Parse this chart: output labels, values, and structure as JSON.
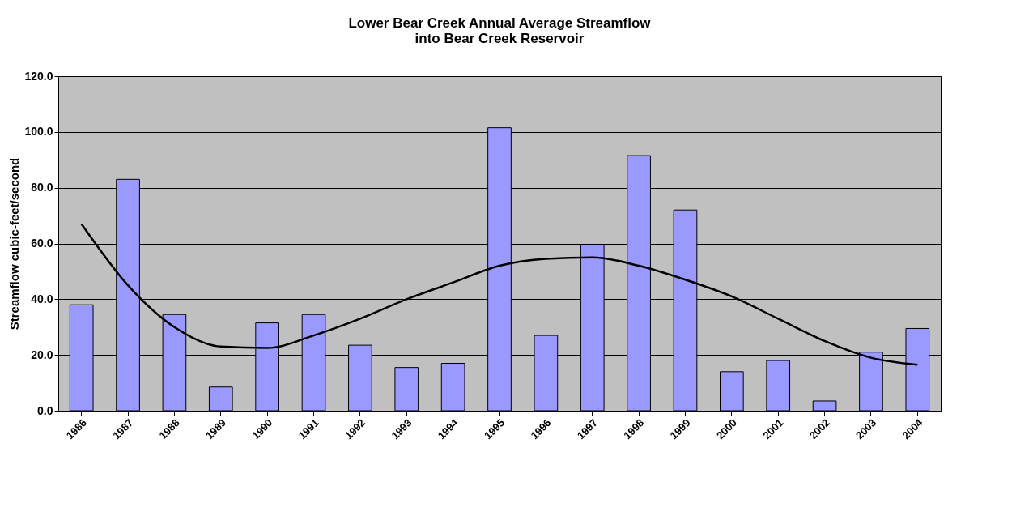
{
  "chart_data": {
    "type": "bar",
    "title": [
      "Lower Bear Creek Annual Average Streamflow",
      "into Bear Creek Reservoir"
    ],
    "ylabel": "Streamflow cubic-feet/second",
    "categories": [
      "1986",
      "1987",
      "1988",
      "1989",
      "1990",
      "1991",
      "1992",
      "1993",
      "1994",
      "1995",
      "1996",
      "1997",
      "1998",
      "1999",
      "2000",
      "2001",
      "2002",
      "2003",
      "2004"
    ],
    "series": [
      {
        "color": "#9999ff",
        "values": [
          38,
          83,
          34.5,
          8.5,
          31.5,
          34.5,
          23.5,
          15.5,
          17,
          101.5,
          27,
          59.5,
          91.5,
          72,
          14,
          18,
          3.5,
          21,
          29.5
        ]
      },
      {
        "type": "line",
        "color": "#000000",
        "values": [
          67,
          45,
          30,
          23,
          22.5,
          27,
          33,
          40,
          46,
          52,
          54.5,
          55,
          52,
          47,
          41,
          33,
          25,
          19,
          16.5
        ]
      }
    ],
    "ylim": [
      0,
      120
    ],
    "yticks": [
      {
        "value": 0,
        "label": "0.0"
      },
      {
        "value": 20,
        "label": "20.0"
      },
      {
        "value": 40,
        "label": "40.0"
      },
      {
        "value": 60,
        "label": "60.0"
      },
      {
        "value": 80,
        "label": "80.0"
      },
      {
        "value": 100,
        "label": "100.0"
      },
      {
        "value": 120,
        "label": "120.0"
      }
    ],
    "grid": "y"
  }
}
